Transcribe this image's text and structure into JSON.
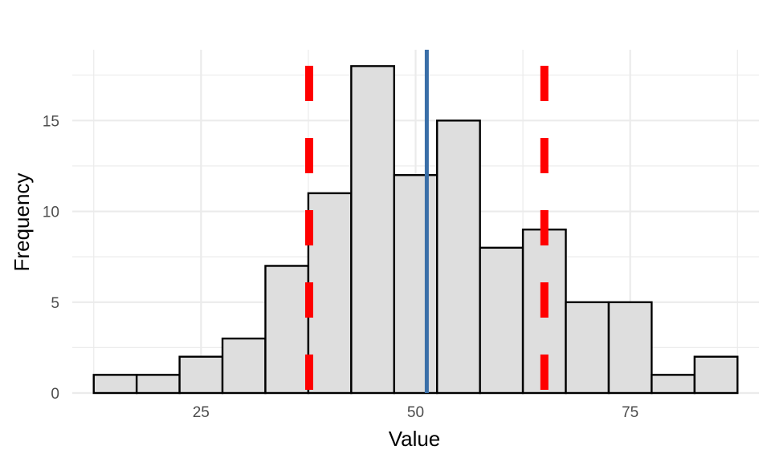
{
  "chart_data": {
    "type": "bar",
    "title": "",
    "xlabel": "Value",
    "ylabel": "Frequency",
    "xlim": [
      10,
      90
    ],
    "ylim": [
      0,
      18.9
    ],
    "bin_width": 5,
    "bins": [
      {
        "x0": 12.5,
        "x1": 17.5,
        "count": 1
      },
      {
        "x0": 17.5,
        "x1": 22.5,
        "count": 1
      },
      {
        "x0": 22.5,
        "x1": 27.5,
        "count": 2
      },
      {
        "x0": 27.5,
        "x1": 32.5,
        "count": 3
      },
      {
        "x0": 32.5,
        "x1": 37.5,
        "count": 7
      },
      {
        "x0": 37.5,
        "x1": 42.5,
        "count": 11
      },
      {
        "x0": 42.5,
        "x1": 47.5,
        "count": 18
      },
      {
        "x0": 47.5,
        "x1": 52.5,
        "count": 12
      },
      {
        "x0": 52.5,
        "x1": 57.5,
        "count": 15
      },
      {
        "x0": 57.5,
        "x1": 62.5,
        "count": 8
      },
      {
        "x0": 62.5,
        "x1": 67.5,
        "count": 9
      },
      {
        "x0": 67.5,
        "x1": 72.5,
        "count": 5
      },
      {
        "x0": 72.5,
        "x1": 77.5,
        "count": 5
      },
      {
        "x0": 77.5,
        "x1": 82.5,
        "count": 1
      },
      {
        "x0": 82.5,
        "x1": 87.5,
        "count": 2
      }
    ],
    "x_ticks": [
      25,
      50,
      75
    ],
    "y_ticks": [
      0,
      5,
      10,
      15
    ],
    "vlines": [
      {
        "x": 51.3,
        "style": "solid",
        "color": "#3a6fa8"
      },
      {
        "x": 37.6,
        "style": "dashed",
        "color": "#ff0000"
      },
      {
        "x": 65.0,
        "style": "dashed",
        "color": "#ff0000"
      }
    ],
    "bar_fill": "#dedede",
    "bar_stroke": "#000000",
    "grid": true,
    "grid_color": "#ebebeb",
    "legend": "none"
  }
}
